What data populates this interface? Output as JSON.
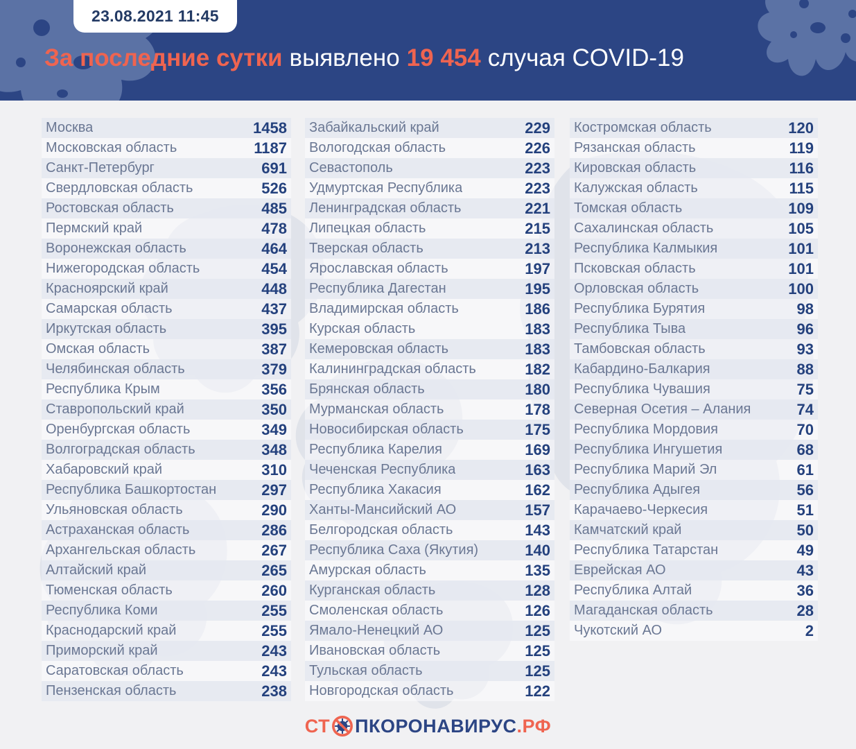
{
  "header": {
    "timestamp": "23.08.2021 11:45",
    "title": {
      "lead": "За последние сутки",
      "middle": "выявлено",
      "count": "19 454",
      "tail": "случая COVID-19"
    }
  },
  "colors": {
    "header_navy": "#2c4584",
    "accent_orange": "#ef6450",
    "blob_blue": "#5b72a5",
    "number_blue": "#24417d",
    "label_blue_gray": "#6a7793",
    "stripe_gray": "#e6e9f1",
    "page_bg": "#f1f1f3"
  },
  "chart_data": {
    "type": "table",
    "title": "За последние сутки выявлено 19 454 случая COVID-19",
    "timestamp": "23.08.2021 11:45",
    "total_cases": 19454,
    "columns": [
      {
        "rows": [
          {
            "region": "Москва",
            "value": "1458"
          },
          {
            "region": "Московская область",
            "value": "1187"
          },
          {
            "region": "Санкт-Петербург",
            "value": "691"
          },
          {
            "region": "Свердловская область",
            "value": "526"
          },
          {
            "region": "Ростовская область",
            "value": "485"
          },
          {
            "region": "Пермский край",
            "value": "478"
          },
          {
            "region": "Воронежская область",
            "value": "464"
          },
          {
            "region": "Нижегородская область",
            "value": "454"
          },
          {
            "region": "Красноярский край",
            "value": "448"
          },
          {
            "region": "Самарская область",
            "value": "437"
          },
          {
            "region": "Иркутская область",
            "value": "395"
          },
          {
            "region": "Омская область",
            "value": "387"
          },
          {
            "region": "Челябинская область",
            "value": "379"
          },
          {
            "region": "Республика Крым",
            "value": "356"
          },
          {
            "region": "Ставропольский край",
            "value": "350"
          },
          {
            "region": "Оренбургская область",
            "value": "349"
          },
          {
            "region": "Волгоградская область",
            "value": "348"
          },
          {
            "region": "Хабаровский край",
            "value": "310"
          },
          {
            "region": "Республика Башкортостан",
            "value": "297"
          },
          {
            "region": "Ульяновская область",
            "value": "290"
          },
          {
            "region": "Астраханская область",
            "value": "286"
          },
          {
            "region": "Архангельская область",
            "value": "267"
          },
          {
            "region": "Алтайский край",
            "value": "265"
          },
          {
            "region": "Тюменская область",
            "value": "260"
          },
          {
            "region": "Республика Коми",
            "value": "255"
          },
          {
            "region": "Краснодарский край",
            "value": "255"
          },
          {
            "region": "Приморский край",
            "value": "243"
          },
          {
            "region": "Саратовская область",
            "value": "243"
          },
          {
            "region": "Пензенская область",
            "value": "238"
          }
        ]
      },
      {
        "rows": [
          {
            "region": "Забайкальский край",
            "value": "229"
          },
          {
            "region": "Вологодская область",
            "value": "226"
          },
          {
            "region": "Севастополь",
            "value": "223"
          },
          {
            "region": "Удмуртская Республика",
            "value": "223"
          },
          {
            "region": "Ленинградская область",
            "value": "221"
          },
          {
            "region": "Липецкая область",
            "value": "215"
          },
          {
            "region": "Тверская область",
            "value": "213"
          },
          {
            "region": "Ярославская область",
            "value": "197"
          },
          {
            "region": "Республика Дагестан",
            "value": "195"
          },
          {
            "region": "Владимирская область",
            "value": "186"
          },
          {
            "region": "Курская область",
            "value": "183"
          },
          {
            "region": "Кемеровская область",
            "value": "183"
          },
          {
            "region": "Калининградская область",
            "value": "182"
          },
          {
            "region": "Брянская область",
            "value": "180"
          },
          {
            "region": "Мурманская область",
            "value": "178"
          },
          {
            "region": "Новосибирская область",
            "value": "175"
          },
          {
            "region": "Республика Карелия",
            "value": "169"
          },
          {
            "region": "Чеченская Республика",
            "value": "163"
          },
          {
            "region": "Республика Хакасия",
            "value": "162"
          },
          {
            "region": "Ханты-Мансийский АО",
            "value": "157"
          },
          {
            "region": "Белгородская область",
            "value": "143"
          },
          {
            "region": "Республика Саха (Якутия)",
            "value": "140"
          },
          {
            "region": "Амурская область",
            "value": "135"
          },
          {
            "region": "Курганская область",
            "value": "128"
          },
          {
            "region": "Смоленская область",
            "value": "126"
          },
          {
            "region": "Ямало-Ненецкий АО",
            "value": "125"
          },
          {
            "region": "Ивановская область",
            "value": "125"
          },
          {
            "region": "Тульская область",
            "value": "125"
          },
          {
            "region": "Новгородская область",
            "value": "122"
          }
        ]
      },
      {
        "rows": [
          {
            "region": "Костромская область",
            "value": "120"
          },
          {
            "region": "Рязанская область",
            "value": "119"
          },
          {
            "region": "Кировская область",
            "value": "116"
          },
          {
            "region": "Калужская область",
            "value": "115"
          },
          {
            "region": "Томская область",
            "value": "109"
          },
          {
            "region": "Сахалинская область",
            "value": "105"
          },
          {
            "region": "Республика Калмыкия",
            "value": "101"
          },
          {
            "region": "Псковская область",
            "value": "101"
          },
          {
            "region": "Орловская область",
            "value": "100"
          },
          {
            "region": "Республика Бурятия",
            "value": "98"
          },
          {
            "region": "Республика Тыва",
            "value": "96"
          },
          {
            "region": "Тамбовская область",
            "value": "93"
          },
          {
            "region": "Кабардино-Балкария",
            "value": "88"
          },
          {
            "region": "Республика Чувашия",
            "value": "75"
          },
          {
            "region": "Северная Осетия – Алания",
            "value": "74"
          },
          {
            "region": "Республика Мордовия",
            "value": "70"
          },
          {
            "region": "Республика Ингушетия",
            "value": "68"
          },
          {
            "region": "Республика Марий Эл",
            "value": "61"
          },
          {
            "region": "Республика Адыгея",
            "value": "56"
          },
          {
            "region": "Карачаево-Черкесия",
            "value": "51"
          },
          {
            "region": "Камчатский край",
            "value": "50"
          },
          {
            "region": "Республика Татарстан",
            "value": "49"
          },
          {
            "region": "Еврейская АО",
            "value": "43"
          },
          {
            "region": "Республика Алтай",
            "value": "36"
          },
          {
            "region": "Магаданская область",
            "value": "28"
          },
          {
            "region": "Чукотский АО",
            "value": "2"
          }
        ]
      }
    ]
  },
  "footer": {
    "logo": {
      "prefix": "СТ",
      "middle": "ПКОРОНАВИРУС",
      "suffix": ".РФ"
    }
  }
}
